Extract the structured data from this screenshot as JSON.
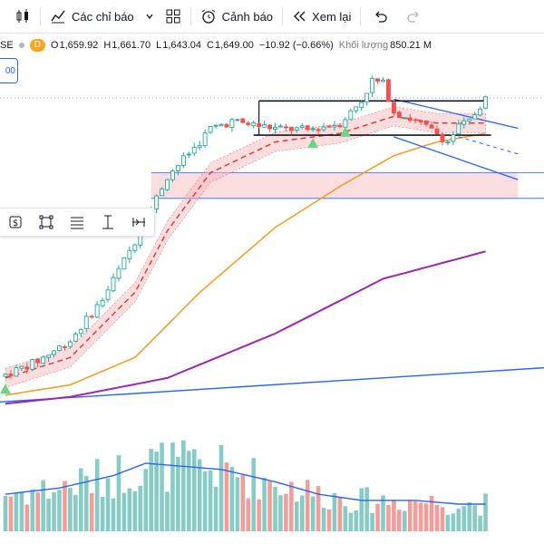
{
  "toolbar": {
    "indicators_label": "Các chỉ báo",
    "alert_label": "Cảnh báo",
    "replay_label": "Xem lại"
  },
  "legend": {
    "symbol_suffix": "SE",
    "interval_badge": "D",
    "o_label": "O",
    "o_value": "1,659.92",
    "h_label": "H",
    "h_value": "1,661.70",
    "l_label": "L",
    "l_value": "1,643.04",
    "c_label": "C",
    "c_value": "1,649.00",
    "change": "−10.92 (−0.66%)",
    "volume_label": "Khối lượng",
    "volume_value": "850.21 M"
  },
  "price_tag": "00",
  "colors": {
    "up": "#26a69a",
    "down": "#ef5350",
    "vol_up": "#87cbc4",
    "vol_down": "#f19e9a",
    "ema_short": "#e53935",
    "ema_mid": "#f0a030",
    "ema_long": "#9c27b0",
    "trend": "#2962ff",
    "zone": "#f7c7ca",
    "signal": "#6fd28a"
  },
  "chart_data": {
    "type": "candlestick",
    "bar_count": 90,
    "ylim": [
      700,
      1760
    ],
    "price_anchors": [
      [
        0,
        840
      ],
      [
        6,
        880
      ],
      [
        12,
        940
      ],
      [
        18,
        1060
      ],
      [
        24,
        1230
      ],
      [
        30,
        1420
      ],
      [
        36,
        1520
      ],
      [
        38,
        1560
      ],
      [
        42,
        1580
      ],
      [
        46,
        1570
      ],
      [
        50,
        1560
      ],
      [
        56,
        1555
      ],
      [
        62,
        1575
      ],
      [
        66,
        1640
      ],
      [
        68,
        1700
      ],
      [
        70,
        1690
      ],
      [
        72,
        1610
      ],
      [
        76,
        1580
      ],
      [
        80,
        1545
      ],
      [
        82,
        1520
      ],
      [
        84,
        1565
      ],
      [
        86,
        1580
      ],
      [
        89,
        1649
      ]
    ],
    "ema_short_anchors": [
      [
        0,
        830
      ],
      [
        12,
        890
      ],
      [
        24,
        1080
      ],
      [
        30,
        1260
      ],
      [
        38,
        1430
      ],
      [
        50,
        1520
      ],
      [
        62,
        1545
      ],
      [
        72,
        1595
      ],
      [
        80,
        1575
      ],
      [
        89,
        1575
      ]
    ],
    "ema_mid_anchors": [
      [
        0,
        780
      ],
      [
        12,
        810
      ],
      [
        24,
        890
      ],
      [
        36,
        1080
      ],
      [
        50,
        1270
      ],
      [
        62,
        1390
      ],
      [
        72,
        1480
      ],
      [
        80,
        1520
      ],
      [
        89,
        1545
      ]
    ],
    "ema_long_anchors": [
      [
        0,
        755
      ],
      [
        12,
        775
      ],
      [
        30,
        830
      ],
      [
        50,
        960
      ],
      [
        70,
        1120
      ],
      [
        89,
        1200
      ]
    ],
    "volume_anchors": [
      [
        0,
        0.3
      ],
      [
        10,
        0.35
      ],
      [
        20,
        0.45
      ],
      [
        26,
        0.55
      ],
      [
        40,
        0.5
      ],
      [
        50,
        0.4
      ],
      [
        58,
        0.3
      ],
      [
        66,
        0.25
      ],
      [
        76,
        0.25
      ],
      [
        84,
        0.22
      ],
      [
        89,
        0.22
      ]
    ],
    "rect_channel": {
      "x": [
        47,
        89
      ],
      "y": [
        1540,
        1640
      ]
    },
    "desc_channel": {
      "top": [
        [
          72,
          1645
        ],
        [
          95,
          1560
        ]
      ],
      "bottom": [
        [
          72,
          1535
        ],
        [
          95,
          1410
        ]
      ]
    },
    "demand_zone": {
      "x": [
        27,
        95
      ],
      "y": [
        1355,
        1430
      ]
    },
    "trendline": {
      "x": [
        0,
        95
      ],
      "y": [
        760,
        860
      ]
    },
    "signals": [
      0,
      57,
      63
    ],
    "last_price": 1649
  }
}
